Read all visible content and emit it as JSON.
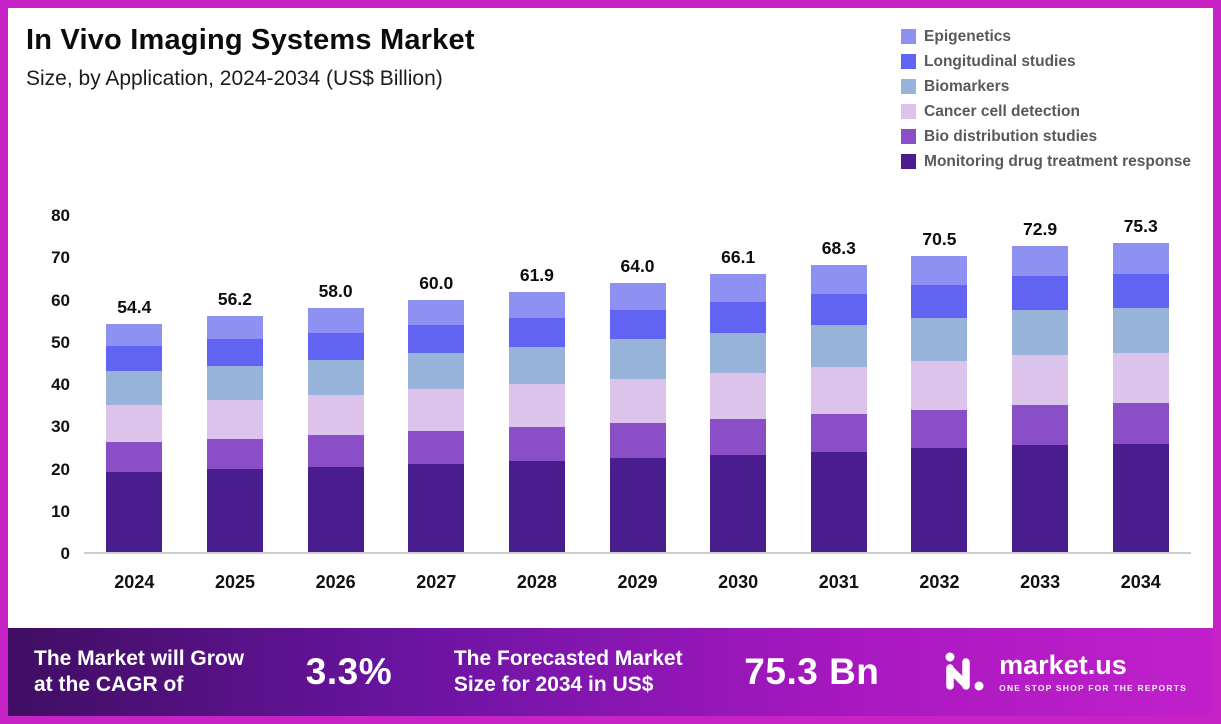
{
  "header": {
    "title": "In Vivo Imaging Systems Market",
    "subtitle": "Size, by Application, 2024-2034 (US$ Billion)"
  },
  "chart_data": {
    "type": "bar",
    "stacked": true,
    "title": "In Vivo Imaging Systems Market",
    "subtitle": "Size, by Application, 2024-2034 (US$ Billion)",
    "xlabel": "",
    "ylabel": "US$ Billion",
    "ylim": [
      0,
      80
    ],
    "yticks": [
      0,
      10,
      20,
      30,
      40,
      50,
      60,
      70,
      80
    ],
    "grid": false,
    "legend_position": "top-right",
    "categories": [
      "2024",
      "2025",
      "2026",
      "2027",
      "2028",
      "2029",
      "2030",
      "2031",
      "2032",
      "2033",
      "2034"
    ],
    "totals": [
      54.4,
      56.2,
      58.0,
      60.0,
      61.9,
      64.0,
      66.1,
      68.3,
      70.5,
      72.9,
      75.3
    ],
    "series": [
      {
        "name": "Monitoring drug treatment response",
        "color": "#491d8d",
        "values": [
          19.0,
          19.7,
          20.3,
          21.0,
          21.7,
          22.4,
          23.1,
          23.9,
          24.7,
          25.5,
          26.4
        ]
      },
      {
        "name": "Bio distribution studies",
        "color": "#8a4ec6",
        "values": [
          7.1,
          7.3,
          7.5,
          7.8,
          8.0,
          8.3,
          8.6,
          8.9,
          9.2,
          9.5,
          9.8
        ]
      },
      {
        "name": "Cancer cell detection",
        "color": "#dcc3ec",
        "values": [
          9.0,
          9.3,
          9.6,
          9.9,
          10.2,
          10.6,
          10.9,
          11.3,
          11.6,
          12.0,
          12.4
        ]
      },
      {
        "name": "Biomarkers",
        "color": "#97b3d9",
        "values": [
          7.9,
          8.1,
          8.4,
          8.7,
          9.0,
          9.3,
          9.6,
          9.9,
          10.2,
          10.6,
          10.9
        ]
      },
      {
        "name": "Longitudinal studies",
        "color": "#6163f2",
        "values": [
          6.0,
          6.2,
          6.4,
          6.6,
          6.8,
          7.0,
          7.3,
          7.5,
          7.8,
          8.0,
          8.3
        ]
      },
      {
        "name": "Epigenetics",
        "color": "#8e90f2",
        "values": [
          5.4,
          5.6,
          5.8,
          6.0,
          6.2,
          6.4,
          6.6,
          6.8,
          7.0,
          7.3,
          7.5
        ]
      }
    ],
    "legend_order": [
      "Epigenetics",
      "Longitudinal studies",
      "Biomarkers",
      "Cancer cell detection",
      "Bio distribution studies",
      "Monitoring drug treatment response"
    ]
  },
  "footer": {
    "growth_text": "The Market will Grow\nat the CAGR of",
    "cagr_value": "3.3%",
    "forecast_text": "The Forecasted Market\nSize for 2034 in US$",
    "forecast_value": "75.3 Bn",
    "brand_name": "market.us",
    "brand_tagline": "ONE STOP SHOP FOR THE REPORTS"
  },
  "colors": {
    "frame": "#c722c5",
    "footer_gradient_start": "#3f0e63",
    "footer_gradient_end": "#c120cb",
    "axis_line": "#cdcdcd"
  }
}
